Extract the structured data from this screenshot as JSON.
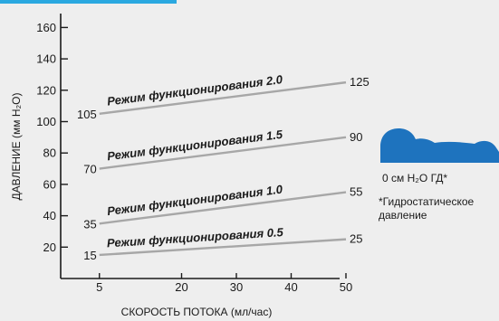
{
  "chart_data": {
    "type": "line",
    "xlabel": "СКОРОСТЬ ПОТОКА (мл/час)",
    "ylabel": "ДАВЛЕНИЕ (мм H₂O)",
    "xticks": [
      5,
      20,
      30,
      40,
      50
    ],
    "yticks": [
      20,
      40,
      60,
      80,
      100,
      120,
      140,
      160
    ],
    "xlim": [
      0,
      52
    ],
    "ylim": [
      0,
      170
    ],
    "grid": false,
    "series": [
      {
        "name": "Режим функционирования 0.5",
        "x": [
          5,
          50
        ],
        "y": [
          15,
          25
        ],
        "start_label": "15",
        "end_label": "25"
      },
      {
        "name": "Режим функционирования  1.0",
        "x": [
          5,
          50
        ],
        "y": [
          35,
          55
        ],
        "start_label": "35",
        "end_label": "55"
      },
      {
        "name": "Режим функционирования 1.5",
        "x": [
          5,
          50
        ],
        "y": [
          70,
          90
        ],
        "start_label": "70",
        "end_label": "90"
      },
      {
        "name": "Режим функционирования 2.0",
        "x": [
          5,
          50
        ],
        "y": [
          105,
          125
        ],
        "start_label": "105",
        "end_label": "125"
      }
    ],
    "line_color": "#a7a7a7"
  },
  "side_panel": {
    "caption": "0 см H₂O ГД*",
    "footnote_line1": "*Гидростатическое",
    "footnote_line2": "давление",
    "figure_color": "#1e73be",
    "figure_icon": "patient-lying-icon"
  }
}
